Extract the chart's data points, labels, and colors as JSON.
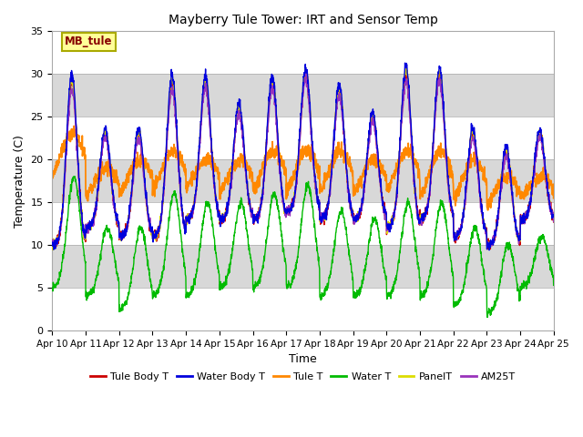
{
  "title": "Mayberry Tule Tower: IRT and Sensor Temp",
  "xlabel": "Time",
  "ylabel": "Temperature (C)",
  "ylim": [
    0,
    35
  ],
  "annotation": "MB_tule",
  "n_days": 15,
  "series_colors": {
    "Tule Body T": "#cc0000",
    "Water Body T": "#0000dd",
    "Tule T": "#ff8800",
    "Water T": "#00bb00",
    "PanelT": "#dddd00",
    "AM25T": "#9933bb"
  },
  "xtick_labels": [
    "Apr 10",
    "Apr 11",
    "Apr 12",
    "Apr 13",
    "Apr 14",
    "Apr 15",
    "Apr 16",
    "Apr 17",
    "Apr 18",
    "Apr 19",
    "Apr 20",
    "Apr 21",
    "Apr 22",
    "Apr 23",
    "Apr 24",
    "Apr 25"
  ],
  "ytick_vals": [
    0,
    5,
    10,
    15,
    20,
    25,
    30,
    35
  ],
  "band_gray": "#d8d8d8",
  "band_white": "#ffffff",
  "figsize": [
    6.4,
    4.8
  ],
  "dpi": 100,
  "day_peaks": [
    29,
    23,
    23,
    29,
    29,
    26,
    29,
    30,
    28,
    25,
    30,
    30,
    23,
    21,
    23
  ],
  "day_mins": [
    10,
    12,
    11,
    11,
    13,
    13,
    13,
    14,
    13,
    13,
    12,
    13,
    11,
    10,
    13
  ],
  "water_peaks": [
    18,
    12,
    12,
    16,
    15,
    15,
    16,
    17,
    14,
    13,
    15,
    15,
    12,
    10,
    11
  ],
  "water_mins": [
    5,
    4,
    2.5,
    4,
    4,
    5,
    5,
    5,
    4,
    4,
    4,
    4,
    3,
    2,
    5
  ],
  "orange_peaks": [
    23,
    19,
    20,
    21,
    20,
    20,
    21,
    21,
    21,
    20,
    21,
    21,
    20,
    18,
    18
  ],
  "orange_mins": [
    17,
    15,
    15,
    15,
    16,
    15,
    15,
    15,
    15,
    15,
    15,
    14,
    14,
    14,
    15
  ]
}
